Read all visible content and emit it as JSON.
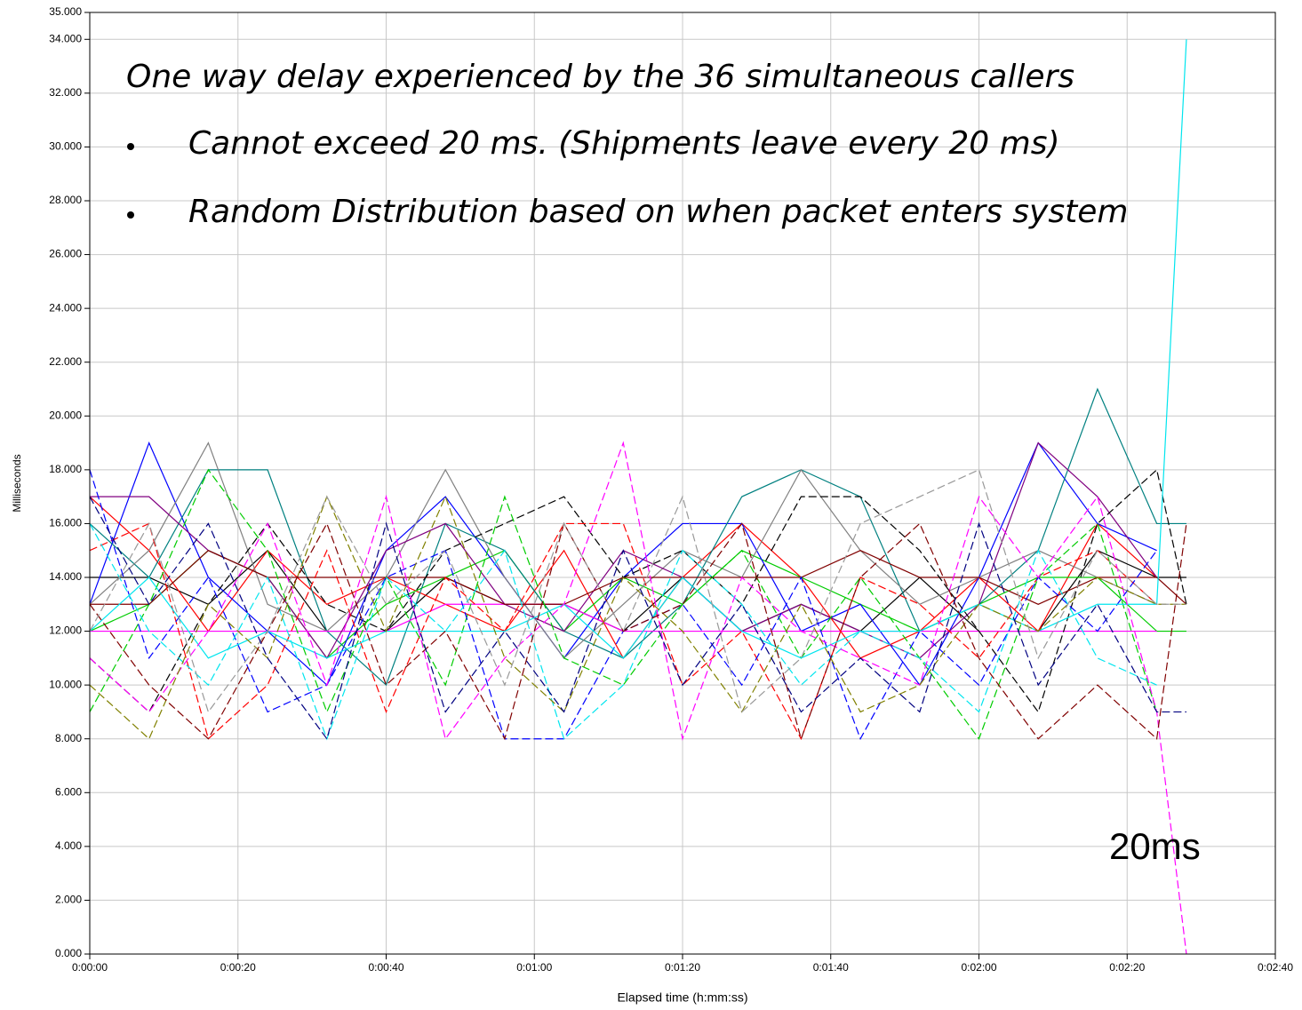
{
  "chart_data": {
    "type": "line",
    "annotations": [
      "One way delay experienced by the 36 simultaneous callers",
      "Cannot exceed 20 ms. (Shipments leave every 20 ms)",
      "Random Distribution based on when packet enters system",
      "20ms"
    ],
    "y_label": "Milliseconds",
    "x_label": "Elapsed time (h:mm:ss)",
    "xlim": [
      0,
      160
    ],
    "ylim": [
      0,
      35
    ],
    "grid": true,
    "xticks": [
      {
        "value": 0,
        "label": "0:00:00"
      },
      {
        "value": 20,
        "label": "0:00:20"
      },
      {
        "value": 40,
        "label": "0:00:40"
      },
      {
        "value": 60,
        "label": "0:01:00"
      },
      {
        "value": 80,
        "label": "0:01:20"
      },
      {
        "value": 100,
        "label": "0:01:40"
      },
      {
        "value": 120,
        "label": "0:02:00"
      },
      {
        "value": 140,
        "label": "0:02:20"
      },
      {
        "value": 160,
        "label": "0:02:40"
      }
    ],
    "yticks": [
      {
        "value": 0,
        "label": "0.000"
      },
      {
        "value": 2,
        "label": "2.000"
      },
      {
        "value": 4,
        "label": "4.000"
      },
      {
        "value": 6,
        "label": "6.000"
      },
      {
        "value": 8,
        "label": "8.000"
      },
      {
        "value": 10,
        "label": "10.000"
      },
      {
        "value": 12,
        "label": "12.000"
      },
      {
        "value": 14,
        "label": "14.000"
      },
      {
        "value": 16,
        "label": "16.000"
      },
      {
        "value": 18,
        "label": "18.000"
      },
      {
        "value": 20,
        "label": "20.000"
      },
      {
        "value": 22,
        "label": "22.000"
      },
      {
        "value": 24,
        "label": "24.000"
      },
      {
        "value": 26,
        "label": "26.000"
      },
      {
        "value": 28,
        "label": "28.000"
      },
      {
        "value": 30,
        "label": "30.000"
      },
      {
        "value": 32,
        "label": "32.000"
      },
      {
        "value": 34,
        "label": "34.000"
      },
      {
        "value": 35,
        "label": "35.000"
      }
    ],
    "x": [
      0,
      8,
      16,
      24,
      32,
      40,
      48,
      56,
      64,
      72,
      80,
      88,
      96,
      104,
      112,
      120,
      128,
      136,
      144,
      148
    ],
    "series": [
      {
        "color": "#000000",
        "dashed": false,
        "values": [
          14,
          14,
          13,
          15,
          12,
          12,
          14,
          13,
          13,
          12,
          14,
          12,
          13,
          12,
          14,
          12,
          12,
          15,
          14,
          14
        ]
      },
      {
        "color": "#ff0000",
        "dashed": false,
        "values": [
          17,
          15,
          12,
          15,
          13,
          14,
          13,
          12,
          15,
          11,
          14,
          16,
          14,
          11,
          12,
          14,
          12,
          16,
          14,
          null
        ]
      },
      {
        "color": "#00cc00",
        "dashed": false,
        "values": [
          12,
          13,
          15,
          14,
          11,
          13,
          14,
          15,
          12,
          14,
          13,
          15,
          14,
          13,
          12,
          13,
          14,
          14,
          12,
          12
        ]
      },
      {
        "color": "#0000ff",
        "dashed": false,
        "values": [
          13,
          19,
          14,
          12,
          10,
          15,
          17,
          14,
          11,
          14,
          16,
          16,
          12,
          13,
          10,
          14,
          19,
          16,
          15,
          null
        ]
      },
      {
        "color": "#008080",
        "dashed": false,
        "values": [
          16,
          14,
          18,
          18,
          12,
          10,
          16,
          15,
          12,
          11,
          13,
          17,
          18,
          17,
          12,
          13,
          15,
          21,
          16,
          16
        ]
      },
      {
        "color": "#808080",
        "dashed": false,
        "values": [
          13,
          15,
          19,
          13,
          12,
          14,
          18,
          14,
          11,
          13,
          15,
          14,
          18,
          15,
          13,
          14,
          15,
          14,
          13,
          null
        ]
      },
      {
        "color": "#ff00ff",
        "dashed": false,
        "values": [
          12,
          12,
          12,
          12,
          12,
          12,
          13,
          13,
          13,
          12,
          12,
          12,
          12,
          12,
          12,
          12,
          12,
          12,
          12,
          null
        ]
      },
      {
        "color": "#800080",
        "dashed": false,
        "values": [
          17,
          17,
          15,
          14,
          11,
          15,
          16,
          13,
          12,
          15,
          14,
          12,
          13,
          12,
          11,
          13,
          19,
          17,
          14,
          null
        ]
      },
      {
        "color": "#800000",
        "dashed": false,
        "values": [
          13,
          13,
          15,
          14,
          14,
          14,
          14,
          13,
          13,
          14,
          14,
          14,
          14,
          15,
          14,
          14,
          13,
          14,
          14,
          13
        ]
      },
      {
        "color": "#000000",
        "dashed": true,
        "values": [
          11,
          9,
          13,
          16,
          13,
          12,
          15,
          16,
          17,
          14,
          15,
          13,
          17,
          17,
          15,
          12,
          9,
          16,
          18,
          13
        ]
      },
      {
        "color": "#ff0000",
        "dashed": true,
        "values": [
          15,
          16,
          8,
          10,
          15,
          9,
          14,
          12,
          16,
          16,
          10,
          12,
          8,
          14,
          13,
          11,
          14,
          15,
          13,
          null
        ]
      },
      {
        "color": "#00cc00",
        "dashed": true,
        "values": [
          9,
          13,
          18,
          15,
          9,
          14,
          10,
          17,
          11,
          10,
          13,
          15,
          11,
          14,
          11,
          8,
          14,
          16,
          9,
          null
        ]
      },
      {
        "color": "#0000ff",
        "dashed": true,
        "values": [
          18,
          11,
          14,
          9,
          10,
          14,
          15,
          8,
          8,
          12,
          13,
          10,
          14,
          8,
          12,
          10,
          14,
          12,
          15,
          null
        ]
      },
      {
        "color": "#00e5ee",
        "dashed": true,
        "values": [
          16,
          12,
          10,
          14,
          8,
          14,
          12,
          15,
          8,
          10,
          15,
          13,
          10,
          12,
          11,
          9,
          15,
          11,
          10,
          null
        ]
      },
      {
        "color": "#00e5ee",
        "dashed": false,
        "values": [
          12,
          14,
          11,
          12,
          11,
          12,
          12,
          12,
          13,
          11,
          14,
          12,
          11,
          12,
          12,
          13,
          12,
          13,
          13,
          34
        ]
      },
      {
        "color": "#ff00ff",
        "dashed": true,
        "values": [
          11,
          9,
          12,
          16,
          10,
          17,
          8,
          11,
          13,
          19,
          8,
          14,
          12,
          11,
          10,
          17,
          14,
          17,
          9,
          0
        ]
      },
      {
        "color": "#808000",
        "dashed": true,
        "values": [
          10,
          8,
          13,
          11,
          17,
          12,
          17,
          11,
          9,
          14,
          12,
          9,
          13,
          9,
          10,
          13,
          12,
          14,
          13,
          13
        ]
      },
      {
        "color": "#800000",
        "dashed": true,
        "values": [
          13,
          10,
          8,
          12,
          16,
          10,
          12,
          8,
          16,
          12,
          13,
          16,
          8,
          14,
          16,
          11,
          8,
          10,
          8,
          16
        ]
      },
      {
        "color": "#999999",
        "dashed": true,
        "values": [
          12,
          16,
          9,
          12,
          17,
          13,
          15,
          10,
          16,
          12,
          17,
          9,
          11,
          16,
          17,
          18,
          11,
          15,
          13,
          13
        ]
      },
      {
        "color": "#000080",
        "dashed": true,
        "values": [
          17,
          13,
          16,
          11,
          8,
          16,
          9,
          12,
          9,
          15,
          10,
          13,
          9,
          11,
          9,
          16,
          10,
          13,
          9,
          9
        ]
      }
    ]
  }
}
